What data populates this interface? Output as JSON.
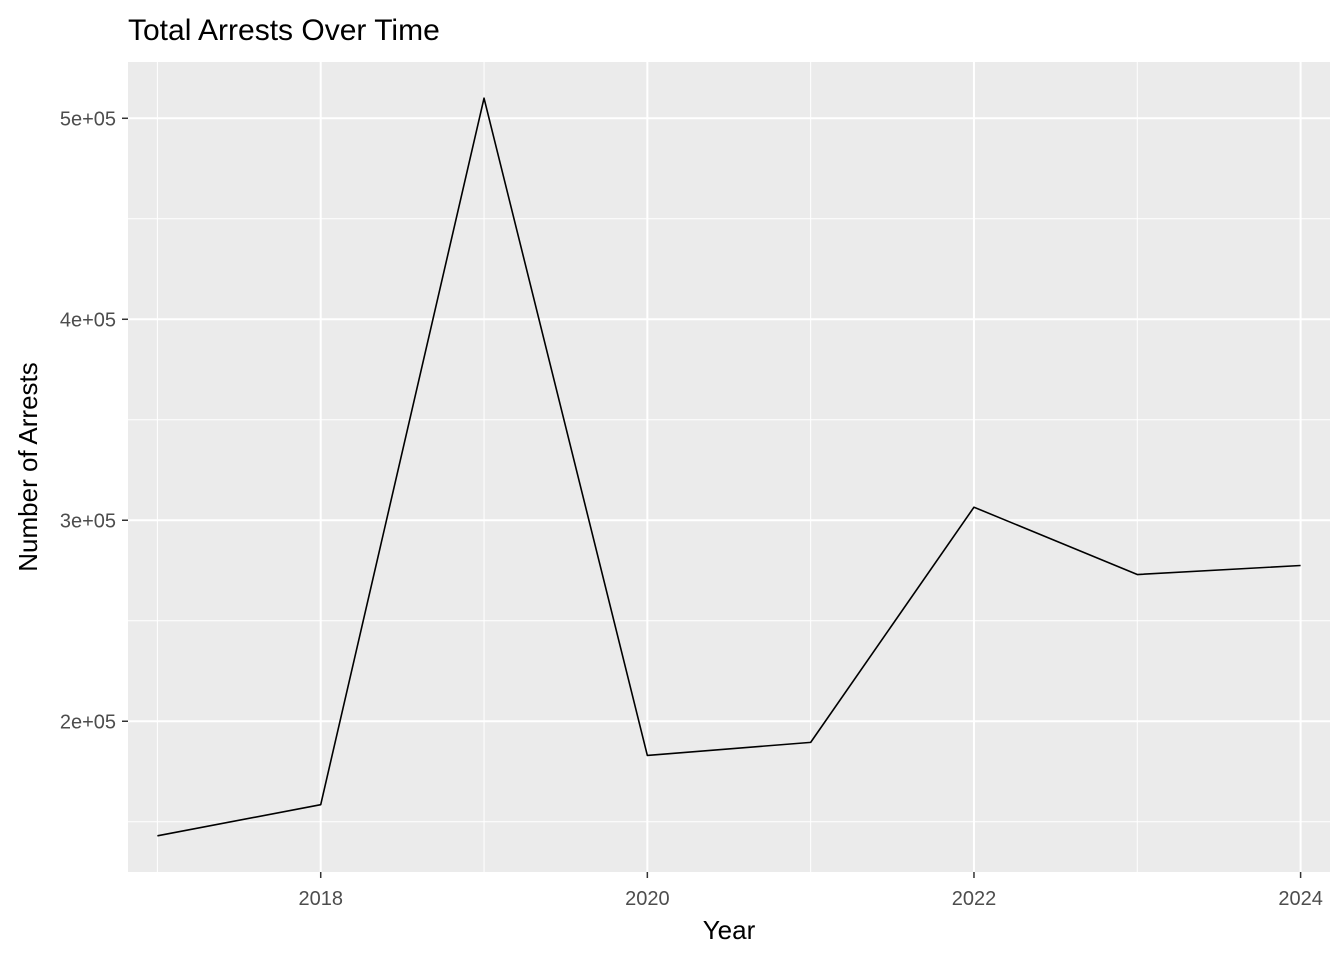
{
  "chart_data": {
    "type": "line",
    "title": "Total Arrests Over Time",
    "xlabel": "Year",
    "ylabel": "Number of Arrests",
    "x": [
      2017,
      2018,
      2019,
      2020,
      2021,
      2022,
      2023,
      2024
    ],
    "series": [
      {
        "values": [
          143000,
          158500,
          510000,
          183000,
          189500,
          306500,
          273000,
          277500
        ],
        "color": "#000000"
      }
    ],
    "xlim": [
      2016.82,
      2024.18
    ],
    "ylim": [
      125000,
      528000
    ],
    "x_ticks": [
      2018,
      2020,
      2022,
      2024
    ],
    "x_tick_labels": [
      "2018",
      "2020",
      "2022",
      "2024"
    ],
    "y_ticks": [
      200000,
      300000,
      400000,
      500000
    ],
    "y_tick_labels": [
      "2e+05",
      "3e+05",
      "4e+05",
      "5e+05"
    ],
    "grid": true,
    "panel_color": "#ebebeb",
    "grid_color": "#ffffff",
    "legend": "none"
  }
}
